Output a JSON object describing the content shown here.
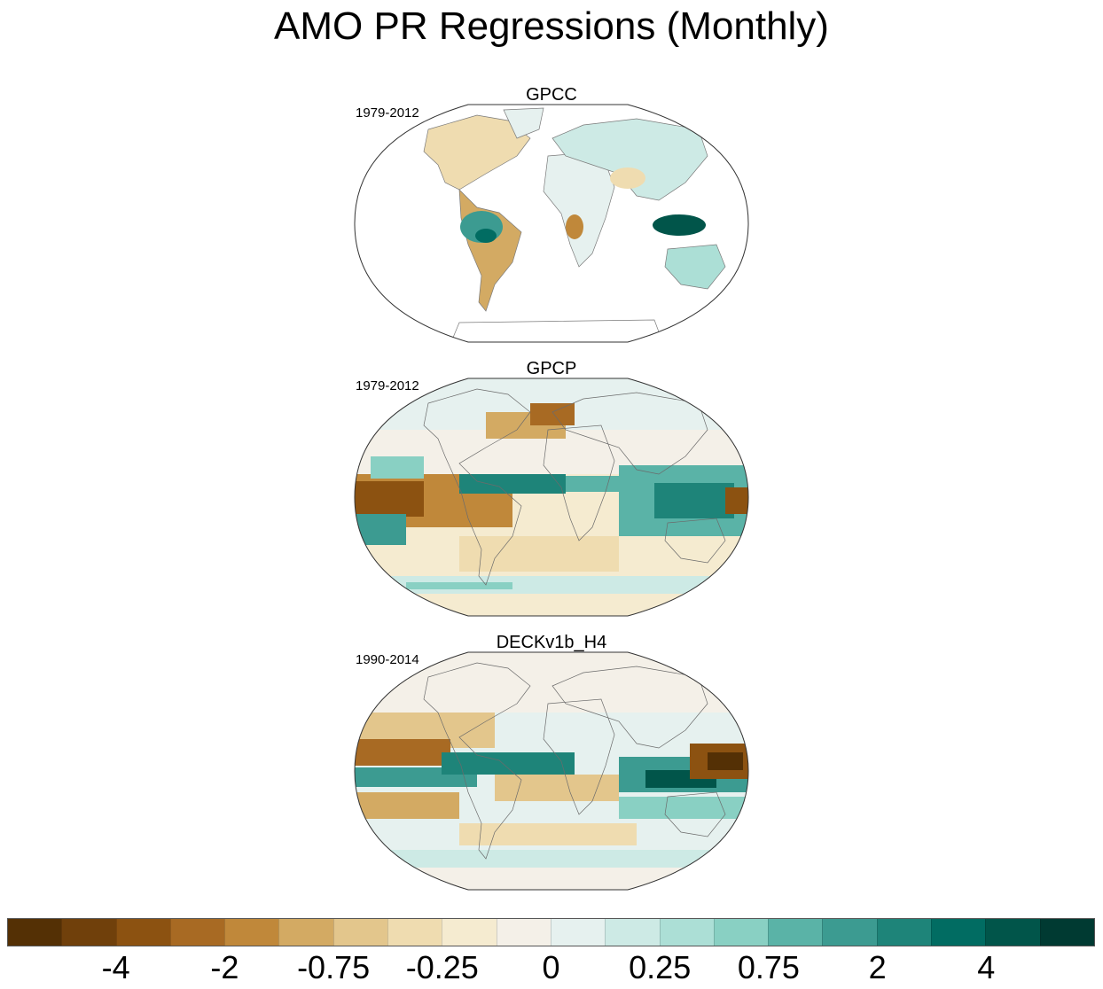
{
  "title": "AMO PR Regressions (Monthly)",
  "panels": [
    {
      "name": "GPCC",
      "period": "1979-2012",
      "coverage": "land-only"
    },
    {
      "name": "GPCP",
      "period": "1979-2012",
      "coverage": "global"
    },
    {
      "name": "DECKv1b_H4",
      "period": "1990-2014",
      "coverage": "global"
    }
  ],
  "colorbar": {
    "colors": [
      "#543005",
      "#70400b",
      "#8c5211",
      "#a86a23",
      "#c0883a",
      "#d3aa63",
      "#e3c68c",
      "#efdcb0",
      "#f5ebd0",
      "#f4f0e8",
      "#e6f1ef",
      "#cdeae5",
      "#acdfd6",
      "#89d0c3",
      "#5ab3a7",
      "#3c9b91",
      "#1e8479",
      "#016c62",
      "#01554a",
      "#003a32"
    ],
    "labels": [
      "-4",
      "-2",
      "-0.75",
      "-0.25",
      "0",
      "0.25",
      "0.75",
      "2",
      "4"
    ]
  },
  "chart_data": {
    "type": "heatmap",
    "title": "AMO PR Regressions (Monthly)",
    "projection": "Robinson-like global map",
    "panels": [
      "GPCC",
      "GPCP",
      "DECKv1b_H4"
    ],
    "color_levels": [
      "-4",
      "-2",
      "-0.75",
      "-0.25",
      "0",
      "0.25",
      "0.75",
      "2",
      "4"
    ]
  }
}
